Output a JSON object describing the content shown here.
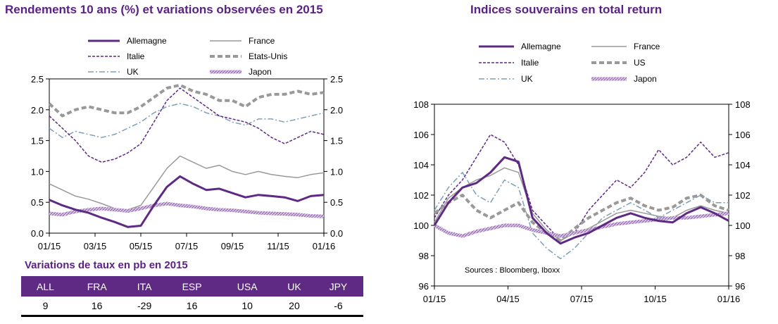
{
  "left": {
    "title": "Rendements 10 ans (%) et variations observées en 2015",
    "chart_data": {
      "type": "line",
      "x_ticks": [
        "01/15",
        "03/15",
        "05/15",
        "07/15",
        "09/15",
        "11/15",
        "01/16"
      ],
      "y_ticks": [
        "0.0",
        "0.5",
        "1.0",
        "1.5",
        "2.0",
        "2.5"
      ],
      "ylim": [
        0,
        2.5
      ],
      "legend": "top, two columns",
      "series": [
        {
          "name": "Allemagne",
          "color": "#5e2a84",
          "style": "solid-thick",
          "values": [
            0.54,
            0.45,
            0.38,
            0.33,
            0.25,
            0.18,
            0.1,
            0.12,
            0.45,
            0.75,
            0.92,
            0.8,
            0.7,
            0.72,
            0.65,
            0.58,
            0.62,
            0.6,
            0.58,
            0.52,
            0.6,
            0.62
          ]
        },
        {
          "name": "France",
          "color": "#999999",
          "style": "solid",
          "values": [
            0.8,
            0.7,
            0.6,
            0.55,
            0.48,
            0.4,
            0.38,
            0.45,
            0.75,
            1.05,
            1.25,
            1.15,
            1.05,
            1.1,
            1.0,
            0.95,
            1.0,
            0.95,
            0.92,
            0.9,
            0.95,
            0.98
          ]
        },
        {
          "name": "Italie",
          "color": "#5e2a84",
          "style": "dashed",
          "values": [
            1.9,
            1.7,
            1.5,
            1.25,
            1.15,
            1.2,
            1.3,
            1.45,
            1.8,
            2.15,
            2.35,
            2.2,
            2.05,
            1.9,
            1.85,
            1.8,
            1.7,
            1.55,
            1.45,
            1.55,
            1.65,
            1.6
          ]
        },
        {
          "name": "Etats-Unis",
          "color": "#999999",
          "style": "dashed-thick",
          "values": [
            2.1,
            1.9,
            2.0,
            2.05,
            2.0,
            1.95,
            1.95,
            2.05,
            2.2,
            2.35,
            2.4,
            2.3,
            2.25,
            2.15,
            2.15,
            2.05,
            2.2,
            2.25,
            2.25,
            2.3,
            2.25,
            2.28
          ]
        },
        {
          "name": "UK",
          "color": "#7f9fb5",
          "style": "dashdot",
          "values": [
            1.7,
            1.55,
            1.65,
            1.6,
            1.55,
            1.6,
            1.7,
            1.8,
            1.95,
            2.05,
            2.1,
            2.05,
            1.95,
            1.9,
            1.8,
            1.75,
            1.85,
            1.85,
            1.8,
            1.85,
            1.9,
            1.95
          ]
        },
        {
          "name": "Japon",
          "color": "#c7a6d9",
          "style": "patterned-thick",
          "values": [
            0.32,
            0.3,
            0.35,
            0.38,
            0.4,
            0.38,
            0.36,
            0.4,
            0.45,
            0.48,
            0.45,
            0.43,
            0.4,
            0.38,
            0.37,
            0.35,
            0.33,
            0.32,
            0.31,
            0.3,
            0.28,
            0.27
          ]
        }
      ]
    }
  },
  "table": {
    "title": "Variations de taux en pb en 2015",
    "headers": [
      "ALL",
      "FRA",
      "ITA",
      "ESP",
      "USA",
      "UK",
      "JPY"
    ],
    "values": [
      "9",
      "16",
      "-29",
      "16",
      "10",
      "20",
      "-6"
    ]
  },
  "right": {
    "title": "Indices souverains en total return",
    "source": "Sources : Bloomberg, Iboxx",
    "chart_data": {
      "type": "line",
      "x_ticks": [
        "01/15",
        "04/15",
        "07/15",
        "10/15",
        "01/16"
      ],
      "y_ticks": [
        "96",
        "98",
        "100",
        "102",
        "104",
        "106",
        "108"
      ],
      "ylim": [
        96,
        108
      ],
      "legend": "top, two columns",
      "series": [
        {
          "name": "Allemagne",
          "color": "#5e2a84",
          "style": "solid-thick",
          "values": [
            100.0,
            101.5,
            102.5,
            102.8,
            103.5,
            104.5,
            104.2,
            100.5,
            99.5,
            98.8,
            99.2,
            99.5,
            100.0,
            100.5,
            100.8,
            100.5,
            100.3,
            100.2,
            100.8,
            101.2,
            100.8,
            100.3
          ]
        },
        {
          "name": "France",
          "color": "#999999",
          "style": "solid",
          "values": [
            100.2,
            101.8,
            102.5,
            103.0,
            103.3,
            103.8,
            103.5,
            100.8,
            99.7,
            99.0,
            99.5,
            99.8,
            100.3,
            100.8,
            101.0,
            100.8,
            100.6,
            100.5,
            101.0,
            101.3,
            101.0,
            100.8
          ]
        },
        {
          "name": "Italie",
          "color": "#5e2a84",
          "style": "dashed",
          "values": [
            100.5,
            102.0,
            103.0,
            104.5,
            106.0,
            105.5,
            104.0,
            101.0,
            100.0,
            99.0,
            99.5,
            101.0,
            102.0,
            103.0,
            102.5,
            103.5,
            105.0,
            104.0,
            104.5,
            105.5,
            104.5,
            104.8
          ]
        },
        {
          "name": "US",
          "color": "#999999",
          "style": "dashed-thick",
          "values": [
            100.8,
            101.5,
            102.0,
            101.0,
            100.5,
            101.0,
            101.5,
            100.2,
            99.5,
            99.0,
            99.8,
            100.5,
            101.0,
            101.5,
            101.8,
            101.3,
            101.0,
            101.2,
            101.8,
            102.0,
            101.3,
            101.0
          ]
        },
        {
          "name": "UK",
          "color": "#7f9fb5",
          "style": "dashdot",
          "values": [
            101.0,
            102.5,
            103.5,
            102.0,
            101.5,
            103.0,
            102.5,
            99.5,
            98.5,
            97.8,
            98.5,
            99.5,
            100.5,
            101.0,
            101.5,
            101.0,
            100.5,
            101.0,
            101.5,
            102.0,
            101.5,
            101.5
          ]
        },
        {
          "name": "Japon",
          "color": "#c7a6d9",
          "style": "patterned-thick",
          "values": [
            100.0,
            99.5,
            99.3,
            99.6,
            99.8,
            100.0,
            100.0,
            99.7,
            99.5,
            99.3,
            99.5,
            99.7,
            99.9,
            100.1,
            100.2,
            100.3,
            100.4,
            100.5,
            100.5,
            100.6,
            100.7,
            100.8
          ]
        }
      ]
    }
  }
}
